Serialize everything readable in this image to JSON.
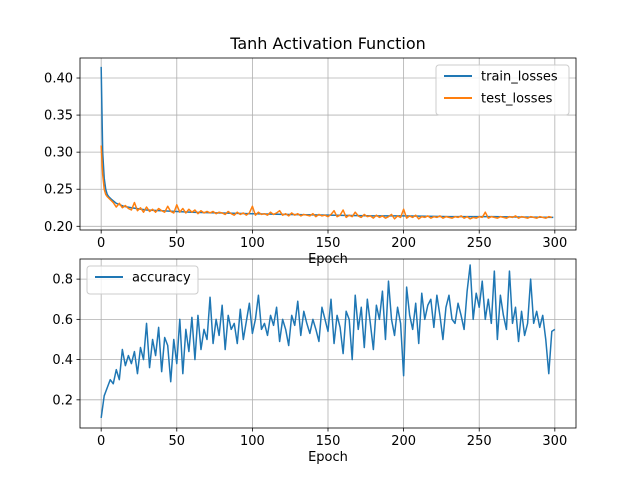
{
  "chart_data": [
    {
      "type": "line",
      "title": "Tanh Activation Function",
      "xlabel": "Epoch",
      "ylabel": "",
      "xlim": [
        -14,
        314
      ],
      "ylim": [
        0.195,
        0.427
      ],
      "x_ticks": [
        0,
        50,
        100,
        150,
        200,
        250,
        300
      ],
      "y_ticks": [
        0.2,
        0.25,
        0.3,
        0.35,
        0.4
      ],
      "y_tick_labels": [
        "0.20",
        "0.25",
        "0.30",
        "0.35",
        "0.40"
      ],
      "grid": true,
      "legend_position": "upper right",
      "series": [
        {
          "name": "train_losses",
          "color": "#1f77b4",
          "x": [
            0,
            1,
            2,
            3,
            4,
            5,
            7,
            10,
            15,
            20,
            30,
            40,
            50,
            60,
            80,
            100,
            120,
            150,
            180,
            200,
            230,
            260,
            299
          ],
          "values": [
            0.415,
            0.3,
            0.265,
            0.25,
            0.243,
            0.24,
            0.236,
            0.231,
            0.227,
            0.225,
            0.222,
            0.221,
            0.22,
            0.219,
            0.218,
            0.217,
            0.216,
            0.215,
            0.214,
            0.214,
            0.213,
            0.213,
            0.212
          ]
        },
        {
          "name": "test_losses",
          "color": "#ff7f0e",
          "x": [
            0,
            1,
            2,
            3,
            4,
            5,
            6,
            8,
            10,
            12,
            14,
            16,
            18,
            20,
            22,
            24,
            26,
            28,
            30,
            32,
            34,
            36,
            38,
            40,
            42,
            44,
            46,
            48,
            50,
            52,
            54,
            56,
            58,
            60,
            62,
            64,
            66,
            68,
            70,
            72,
            74,
            76,
            78,
            80,
            82,
            84,
            86,
            88,
            90,
            92,
            94,
            96,
            98,
            100,
            102,
            104,
            106,
            108,
            110,
            112,
            114,
            116,
            118,
            120,
            122,
            124,
            126,
            128,
            130,
            132,
            134,
            136,
            138,
            140,
            142,
            144,
            146,
            148,
            150,
            152,
            154,
            156,
            158,
            160,
            162,
            164,
            166,
            168,
            170,
            172,
            174,
            176,
            178,
            180,
            182,
            184,
            186,
            188,
            190,
            192,
            194,
            196,
            198,
            200,
            202,
            204,
            206,
            208,
            210,
            212,
            214,
            216,
            218,
            220,
            222,
            224,
            226,
            228,
            230,
            232,
            234,
            236,
            238,
            240,
            242,
            244,
            246,
            248,
            250,
            252,
            254,
            256,
            258,
            260,
            262,
            264,
            266,
            268,
            270,
            272,
            274,
            276,
            278,
            280,
            282,
            284,
            286,
            288,
            290,
            292,
            294,
            296,
            298
          ],
          "values": [
            0.309,
            0.27,
            0.25,
            0.243,
            0.24,
            0.238,
            0.236,
            0.232,
            0.226,
            0.231,
            0.225,
            0.228,
            0.224,
            0.222,
            0.232,
            0.221,
            0.225,
            0.219,
            0.226,
            0.22,
            0.223,
            0.219,
            0.224,
            0.221,
            0.219,
            0.227,
            0.22,
            0.218,
            0.229,
            0.219,
            0.224,
            0.218,
            0.223,
            0.219,
            0.222,
            0.217,
            0.221,
            0.218,
            0.22,
            0.218,
            0.22,
            0.217,
            0.219,
            0.218,
            0.216,
            0.22,
            0.217,
            0.215,
            0.219,
            0.216,
            0.218,
            0.215,
            0.218,
            0.227,
            0.215,
            0.219,
            0.216,
            0.217,
            0.215,
            0.219,
            0.216,
            0.218,
            0.221,
            0.215,
            0.217,
            0.214,
            0.218,
            0.215,
            0.217,
            0.214,
            0.216,
            0.215,
            0.214,
            0.217,
            0.213,
            0.216,
            0.214,
            0.215,
            0.213,
            0.216,
            0.221,
            0.213,
            0.215,
            0.222,
            0.212,
            0.215,
            0.213,
            0.219,
            0.214,
            0.212,
            0.216,
            0.213,
            0.214,
            0.211,
            0.215,
            0.212,
            0.214,
            0.211,
            0.213,
            0.216,
            0.21,
            0.214,
            0.212,
            0.223,
            0.211,
            0.214,
            0.212,
            0.215,
            0.21,
            0.213,
            0.212,
            0.214,
            0.211,
            0.213,
            0.212,
            0.214,
            0.211,
            0.213,
            0.212,
            0.211,
            0.213,
            0.212,
            0.214,
            0.211,
            0.213,
            0.21,
            0.212,
            0.211,
            0.213,
            0.212,
            0.219,
            0.211,
            0.213,
            0.212,
            0.211,
            0.213,
            0.212,
            0.211,
            0.213,
            0.212,
            0.214,
            0.211,
            0.213,
            0.212,
            0.211,
            0.213,
            0.212,
            0.211,
            0.213,
            0.212,
            0.211,
            0.213,
            0.212
          ]
        }
      ]
    },
    {
      "type": "line",
      "title": "",
      "xlabel": "Epoch",
      "ylabel": "",
      "xlim": [
        -14,
        314
      ],
      "ylim": [
        0.06,
        0.9
      ],
      "x_ticks": [
        0,
        50,
        100,
        150,
        200,
        250,
        300
      ],
      "y_ticks": [
        0.2,
        0.4,
        0.6,
        0.8
      ],
      "y_tick_labels": [
        "0.2",
        "0.4",
        "0.6",
        "0.8"
      ],
      "grid": true,
      "legend_position": "upper left",
      "series": [
        {
          "name": "accuracy",
          "color": "#1f77b4",
          "x": [
            0,
            2,
            4,
            6,
            8,
            10,
            12,
            14,
            16,
            18,
            20,
            22,
            24,
            26,
            28,
            30,
            32,
            34,
            36,
            38,
            40,
            42,
            44,
            46,
            48,
            50,
            52,
            54,
            56,
            58,
            60,
            62,
            64,
            66,
            68,
            70,
            72,
            74,
            76,
            78,
            80,
            82,
            84,
            86,
            88,
            90,
            92,
            94,
            96,
            98,
            100,
            102,
            104,
            106,
            108,
            110,
            112,
            114,
            116,
            118,
            120,
            122,
            124,
            126,
            128,
            130,
            132,
            134,
            136,
            138,
            140,
            142,
            144,
            146,
            148,
            150,
            152,
            154,
            156,
            158,
            160,
            162,
            164,
            166,
            168,
            170,
            172,
            174,
            176,
            178,
            180,
            182,
            184,
            186,
            188,
            190,
            192,
            194,
            196,
            198,
            200,
            202,
            204,
            206,
            208,
            210,
            212,
            214,
            216,
            218,
            220,
            222,
            224,
            226,
            228,
            230,
            232,
            234,
            236,
            238,
            240,
            242,
            244,
            246,
            248,
            250,
            252,
            254,
            256,
            258,
            260,
            262,
            264,
            266,
            268,
            270,
            272,
            274,
            276,
            278,
            280,
            282,
            284,
            286,
            288,
            290,
            292,
            294,
            296,
            298,
            300
          ],
          "values": [
            0.11,
            0.22,
            0.26,
            0.3,
            0.28,
            0.35,
            0.3,
            0.45,
            0.37,
            0.42,
            0.38,
            0.44,
            0.33,
            0.46,
            0.4,
            0.58,
            0.36,
            0.5,
            0.42,
            0.56,
            0.34,
            0.51,
            0.47,
            0.29,
            0.5,
            0.38,
            0.6,
            0.33,
            0.55,
            0.44,
            0.61,
            0.4,
            0.62,
            0.45,
            0.55,
            0.5,
            0.71,
            0.48,
            0.6,
            0.52,
            0.67,
            0.45,
            0.62,
            0.55,
            0.58,
            0.48,
            0.65,
            0.5,
            0.59,
            0.68,
            0.53,
            0.6,
            0.72,
            0.55,
            0.58,
            0.52,
            0.62,
            0.57,
            0.66,
            0.49,
            0.6,
            0.55,
            0.47,
            0.62,
            0.57,
            0.69,
            0.52,
            0.64,
            0.58,
            0.53,
            0.6,
            0.55,
            0.49,
            0.66,
            0.6,
            0.54,
            0.7,
            0.48,
            0.62,
            0.56,
            0.43,
            0.64,
            0.6,
            0.4,
            0.72,
            0.55,
            0.66,
            0.46,
            0.7,
            0.58,
            0.45,
            0.67,
            0.6,
            0.74,
            0.5,
            0.79,
            0.6,
            0.52,
            0.66,
            0.58,
            0.32,
            0.76,
            0.62,
            0.55,
            0.68,
            0.48,
            0.73,
            0.6,
            0.67,
            0.7,
            0.56,
            0.72,
            0.62,
            0.5,
            0.66,
            0.72,
            0.6,
            0.58,
            0.68,
            0.62,
            0.55,
            0.74,
            0.87,
            0.6,
            0.73,
            0.66,
            0.79,
            0.6,
            0.7,
            0.58,
            0.84,
            0.5,
            0.72,
            0.62,
            0.55,
            0.84,
            0.58,
            0.66,
            0.49,
            0.64,
            0.52,
            0.58,
            0.8,
            0.58,
            0.64,
            0.56,
            0.62,
            0.5,
            0.33,
            0.54,
            0.55
          ]
        }
      ]
    }
  ]
}
